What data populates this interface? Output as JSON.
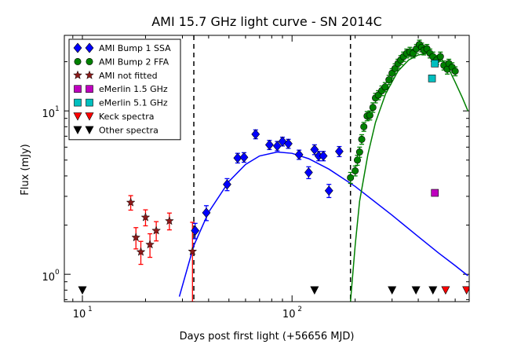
{
  "chart_data": {
    "type": "scatter",
    "title": "AMI 15.7 GHz light curve - SN 2014C",
    "xlabel": "Days post first light (+56656 MJD)",
    "ylabel": "Flux (mJy)",
    "xscale": "log",
    "yscale": "log",
    "xlim": [
      8.2,
      700
    ],
    "ylim": [
      0.68,
      29
    ],
    "x_ticks": [
      {
        "value": 10,
        "base": "10",
        "exp": "1"
      },
      {
        "value": 100,
        "base": "10",
        "exp": "2"
      }
    ],
    "y_ticks": [
      {
        "value": 1,
        "base": "10",
        "exp": "0"
      },
      {
        "value": 10,
        "base": "10",
        "exp": "1"
      }
    ],
    "vlines": [
      34,
      190
    ],
    "legend": {
      "placement": "top-left",
      "entries": [
        {
          "label": "AMI Bump 1 SSA",
          "marker": "diamond",
          "color": "#0000ff"
        },
        {
          "label": "AMI Bump 2 FFA",
          "marker": "circle",
          "color": "#008000"
        },
        {
          "label": "AMI not fitted",
          "marker": "star",
          "color": "#8b1a1a"
        },
        {
          "label": "eMerlin 1.5 GHz",
          "marker": "square",
          "color": "#bf00bf"
        },
        {
          "label": "eMerlin 5.1 GHz",
          "marker": "square",
          "color": "#00bfbf"
        },
        {
          "label": "Keck spectra",
          "marker": "triangle-down",
          "color": "#ff0000"
        },
        {
          "label": "Other spectra",
          "marker": "triangle-down",
          "color": "#000000"
        }
      ]
    },
    "series": [
      {
        "name": "AMI not fitted",
        "marker": "star",
        "color": "#8b1a1a",
        "errcolor": "#ff0000",
        "points": [
          {
            "x": 17,
            "y": 2.75,
            "err": 0.28
          },
          {
            "x": 18,
            "y": 1.68,
            "err": 0.25
          },
          {
            "x": 19,
            "y": 1.37,
            "err": 0.22
          },
          {
            "x": 20,
            "y": 2.23,
            "err": 0.25
          },
          {
            "x": 21,
            "y": 1.52,
            "err": 0.25
          },
          {
            "x": 22.5,
            "y": 1.85,
            "err": 0.25
          },
          {
            "x": 26,
            "y": 2.12,
            "err": 0.25
          },
          {
            "x": 33.5,
            "y": 1.38,
            "err": 0.7
          }
        ]
      },
      {
        "name": "AMI Bump 1 SSA",
        "marker": "diamond",
        "color": "#0000ff",
        "errcolor": "#0000ff",
        "points": [
          {
            "x": 34.5,
            "y": 1.85,
            "err": 0.2
          },
          {
            "x": 39,
            "y": 2.38,
            "err": 0.25
          },
          {
            "x": 49,
            "y": 3.55,
            "err": 0.3
          },
          {
            "x": 55,
            "y": 5.15,
            "err": 0.35
          },
          {
            "x": 59,
            "y": 5.2,
            "err": 0.35
          },
          {
            "x": 67,
            "y": 7.2,
            "err": 0.45
          },
          {
            "x": 78,
            "y": 6.2,
            "err": 0.4
          },
          {
            "x": 85,
            "y": 6.1,
            "err": 0.4
          },
          {
            "x": 90,
            "y": 6.5,
            "err": 0.4
          },
          {
            "x": 96,
            "y": 6.3,
            "err": 0.4
          },
          {
            "x": 108,
            "y": 5.4,
            "err": 0.35
          },
          {
            "x": 120,
            "y": 4.2,
            "err": 0.35
          },
          {
            "x": 128,
            "y": 5.8,
            "err": 0.4
          },
          {
            "x": 134,
            "y": 5.3,
            "err": 0.35
          },
          {
            "x": 141,
            "y": 5.3,
            "err": 0.35
          },
          {
            "x": 150,
            "y": 3.25,
            "err": 0.3
          },
          {
            "x": 168,
            "y": 5.65,
            "err": 0.4
          }
        ]
      },
      {
        "name": "AMI Bump 2 FFA",
        "marker": "circle",
        "color": "#008000",
        "errcolor": "#008000",
        "points": [
          {
            "x": 190,
            "y": 3.9,
            "err": 0.3
          },
          {
            "x": 200,
            "y": 4.3,
            "err": 0.3
          },
          {
            "x": 205,
            "y": 5.0,
            "err": 0.35
          },
          {
            "x": 210,
            "y": 5.6,
            "err": 0.4
          },
          {
            "x": 215,
            "y": 6.7,
            "err": 0.45
          },
          {
            "x": 220,
            "y": 8.0,
            "err": 0.5
          },
          {
            "x": 228,
            "y": 9.3,
            "err": 0.6
          },
          {
            "x": 235,
            "y": 9.4,
            "err": 0.6
          },
          {
            "x": 243,
            "y": 10.5,
            "err": 0.7
          },
          {
            "x": 250,
            "y": 12.0,
            "err": 0.8
          },
          {
            "x": 258,
            "y": 12.5,
            "err": 0.8
          },
          {
            "x": 268,
            "y": 13.3,
            "err": 0.9
          },
          {
            "x": 278,
            "y": 14.0,
            "err": 0.9
          },
          {
            "x": 290,
            "y": 15.5,
            "err": 1.0
          },
          {
            "x": 300,
            "y": 17.0,
            "err": 1.1
          },
          {
            "x": 310,
            "y": 18.2,
            "err": 1.2
          },
          {
            "x": 320,
            "y": 19.5,
            "err": 1.2
          },
          {
            "x": 330,
            "y": 20.5,
            "err": 1.3
          },
          {
            "x": 340,
            "y": 21.5,
            "err": 1.4
          },
          {
            "x": 352,
            "y": 22.5,
            "err": 1.4
          },
          {
            "x": 365,
            "y": 23.0,
            "err": 1.5
          },
          {
            "x": 378,
            "y": 22.5,
            "err": 1.4
          },
          {
            "x": 392,
            "y": 24.0,
            "err": 1.5
          },
          {
            "x": 405,
            "y": 25.5,
            "err": 1.6
          },
          {
            "x": 415,
            "y": 24.5,
            "err": 1.5
          },
          {
            "x": 425,
            "y": 23.5,
            "err": 1.5
          },
          {
            "x": 440,
            "y": 24.0,
            "err": 1.5
          },
          {
            "x": 455,
            "y": 22.5,
            "err": 1.4
          },
          {
            "x": 470,
            "y": 21.5,
            "err": 1.4
          },
          {
            "x": 490,
            "y": 20.5,
            "err": 1.3
          },
          {
            "x": 510,
            "y": 21.5,
            "err": 1.4
          },
          {
            "x": 530,
            "y": 19.0,
            "err": 1.2
          },
          {
            "x": 550,
            "y": 18.0,
            "err": 1.2
          },
          {
            "x": 560,
            "y": 19.5,
            "err": 1.2
          },
          {
            "x": 580,
            "y": 18.5,
            "err": 1.2
          },
          {
            "x": 600,
            "y": 17.5,
            "err": 1.1
          }
        ]
      },
      {
        "name": "eMerlin 1.5 GHz",
        "marker": "square",
        "color": "#bf00bf",
        "errcolor": "#bf00bf",
        "points": [
          {
            "x": 480,
            "y": 3.15,
            "err": 0
          }
        ]
      },
      {
        "name": "eMerlin 5.1 GHz",
        "marker": "square",
        "color": "#00bfbf",
        "errcolor": "#00bfbf",
        "points": [
          {
            "x": 480,
            "y": 19.5,
            "err": 0
          },
          {
            "x": 465,
            "y": 15.8,
            "err": 0
          }
        ]
      },
      {
        "name": "Keck spectra",
        "marker": "triangle-down",
        "color": "#ff0000",
        "errcolor": "#ff0000",
        "points": [
          {
            "x": 540,
            "y": 0.8,
            "err": 0
          },
          {
            "x": 680,
            "y": 0.8,
            "err": 0
          }
        ]
      },
      {
        "name": "Other spectra",
        "marker": "triangle-down",
        "color": "#000000",
        "errcolor": "#000000",
        "points": [
          {
            "x": 10,
            "y": 0.8,
            "err": 0
          },
          {
            "x": 128,
            "y": 0.8,
            "err": 0
          },
          {
            "x": 300,
            "y": 0.8,
            "err": 0
          },
          {
            "x": 390,
            "y": 0.8,
            "err": 0
          },
          {
            "x": 470,
            "y": 0.8,
            "err": 0
          }
        ]
      }
    ],
    "fits": [
      {
        "name": "SSA fit",
        "color": "#0000ff",
        "points": [
          [
            29,
            0.73
          ],
          [
            34,
            1.5
          ],
          [
            40,
            2.4
          ],
          [
            50,
            3.7
          ],
          [
            60,
            4.7
          ],
          [
            70,
            5.3
          ],
          [
            85,
            5.6
          ],
          [
            100,
            5.5
          ],
          [
            120,
            5.1
          ],
          [
            150,
            4.4
          ],
          [
            200,
            3.45
          ],
          [
            300,
            2.3
          ],
          [
            400,
            1.7
          ],
          [
            500,
            1.35
          ],
          [
            600,
            1.13
          ],
          [
            690,
            0.98
          ]
        ]
      },
      {
        "name": "FFA fit",
        "color": "#008000",
        "points": [
          [
            190,
            0.68
          ],
          [
            200,
            1.5
          ],
          [
            210,
            2.8
          ],
          [
            230,
            5.4
          ],
          [
            250,
            8.5
          ],
          [
            280,
            12.8
          ],
          [
            320,
            17.5
          ],
          [
            360,
            20.5
          ],
          [
            400,
            22.0
          ],
          [
            440,
            22.5
          ],
          [
            480,
            22.0
          ],
          [
            520,
            20.5
          ],
          [
            560,
            18.0
          ],
          [
            600,
            15.0
          ],
          [
            650,
            12.0
          ],
          [
            690,
            10.0
          ]
        ]
      }
    ]
  }
}
